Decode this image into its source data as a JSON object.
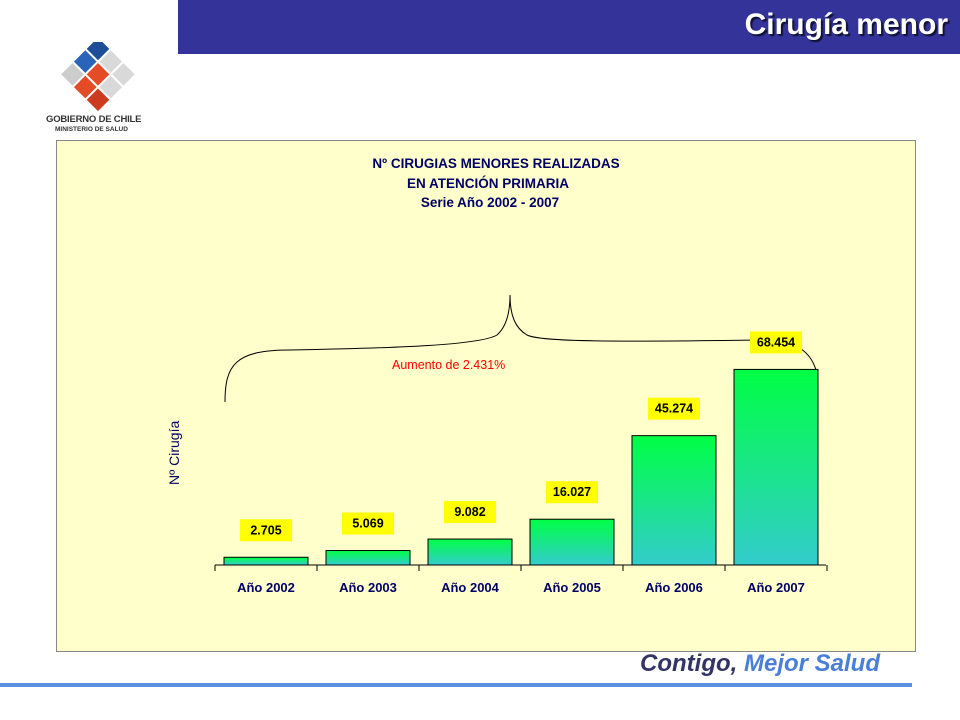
{
  "slide": {
    "title": "Cirugía menor"
  },
  "logo": {
    "line1": "GOBIERNO DE CHILE",
    "line2": "MINISTERIO DE SALUD"
  },
  "footer": {
    "part1": "Contigo,",
    "part2": "Mejor Salud"
  },
  "colors": {
    "title_bar": "#333399",
    "chart_background": "#ffffcc",
    "bar_top": "#00ff44",
    "bar_bottom": "#33cccc",
    "label_box": "#ffff00",
    "annotation": "#ff0000"
  },
  "chart_data": {
    "type": "bar",
    "title_lines": [
      "Nº CIRUGIAS MENORES REALIZADAS",
      "EN ATENCIÓN PRIMARIA",
      "Serie Año 2002 - 2007"
    ],
    "ylabel": "Nº Cirugía",
    "xlabel": "",
    "categories": [
      "Año 2002",
      "Año 2003",
      "Año 2004",
      "Año 2005",
      "Año 2006",
      "Año 2007"
    ],
    "values": [
      2705,
      5069,
      9082,
      16027,
      45274,
      68454
    ],
    "value_labels": [
      "2.705",
      "5.069",
      "9.082",
      "16.027",
      "45.274",
      "68.454"
    ],
    "ylim": [
      0,
      70000
    ],
    "grid": false,
    "legend": "none",
    "annotation": "Aumento de 2.431%"
  }
}
